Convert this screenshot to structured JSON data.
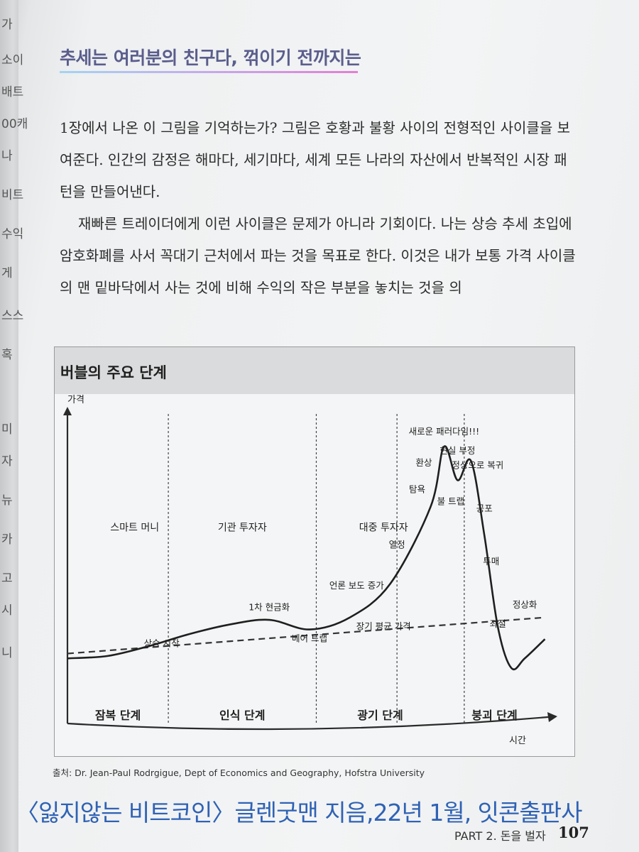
{
  "prev_page_fragments": [
    "가",
    "소이",
    "배트",
    "00캐",
    "나",
    "비트",
    "수익",
    "게",
    "스스",
    "혹",
    "미",
    "자",
    "뉴",
    "카",
    "고",
    "시",
    "니"
  ],
  "headline": "추세는 여러분의 친구다, 꺾이기 전까지는",
  "paragraphs": [
    "1장에서 나온 이 그림을 기억하는가? 그림은 호황과 불황 사이의 전형적인 사이클을 보여준다. 인간의 감정은 해마다, 세기마다, 세계 모든 나라의 자산에서 반복적인 시장 패턴을 만들어낸다.",
    "재빠른 트레이더에게 이런 사이클은 문제가 아니라 기회이다. 나는 상승 추세 초입에 암호화폐를 사서 꼭대기 근처에서 파는 것을 목표로 한다. 이것은 내가 보통 가격 사이클의 맨 밑바닥에서 사는 것에 비해 수익의 작은 부분을 놓치는 것을 의"
  ],
  "figure": {
    "title": "버블의 주요 단계"
  },
  "chart_data": {
    "type": "line",
    "title": "버블의 주요 단계",
    "xlabel": "시간",
    "ylabel": "가격",
    "colors": {
      "curve": "#1f1f1f",
      "trend": "#333333",
      "divider": "#444444"
    },
    "phases": [
      "잠복 단계",
      "인식 단계",
      "광기 단계",
      "붕괴 단계"
    ],
    "participants": [
      "스마트 머니",
      "기관 투자자",
      "대중 투자자"
    ],
    "series": [
      {
        "values": [
          {
            "x": 0,
            "y": 7
          },
          {
            "x": 6,
            "y": 8
          },
          {
            "x": 12,
            "y": 12
          },
          {
            "x": 18,
            "y": 17
          },
          {
            "x": 24,
            "y": 21
          },
          {
            "x": 30,
            "y": 23
          },
          {
            "x": 36,
            "y": 19
          },
          {
            "x": 42,
            "y": 24
          },
          {
            "x": 48,
            "y": 38
          },
          {
            "x": 54,
            "y": 70
          },
          {
            "x": 56,
            "y": 95
          },
          {
            "x": 58,
            "y": 81
          },
          {
            "x": 60,
            "y": 89
          },
          {
            "x": 62,
            "y": 58
          },
          {
            "x": 64,
            "y": 20
          },
          {
            "x": 66,
            "y": 3
          },
          {
            "x": 68,
            "y": 7
          },
          {
            "x": 71,
            "y": 15
          }
        ]
      },
      {
        "name": "장기 평균 가격",
        "values": [
          {
            "x": 0,
            "y": 9
          },
          {
            "x": 71,
            "y": 24
          }
        ]
      }
    ],
    "phase_boundaries_x": [
      15,
      37,
      49
    ],
    "annotations": [
      {
        "text": "상승 시작",
        "x": 14,
        "y": 12
      },
      {
        "text": "1차 현금화",
        "x": 30,
        "y": 27
      },
      {
        "text": "베어 트랩",
        "x": 36,
        "y": 14
      },
      {
        "text": "언론 보도 증가",
        "x": 43,
        "y": 36
      },
      {
        "text": "열정",
        "x": 49,
        "y": 53
      },
      {
        "text": "탐욕",
        "x": 52,
        "y": 76
      },
      {
        "text": "환상",
        "x": 53,
        "y": 87
      },
      {
        "text": "새로운 패러다임!!!",
        "x": 56,
        "y": 100
      },
      {
        "text": "현실 부정",
        "x": 58,
        "y": 92
      },
      {
        "text": "정상으로 복귀",
        "x": 61,
        "y": 86
      },
      {
        "text": "불 트랩",
        "x": 57,
        "y": 71
      },
      {
        "text": "공포",
        "x": 62,
        "y": 68
      },
      {
        "text": "투매",
        "x": 63,
        "y": 46
      },
      {
        "text": "좌절",
        "x": 64,
        "y": 20
      },
      {
        "text": "정상화",
        "x": 68,
        "y": 28
      },
      {
        "text": "장기 평균 가격",
        "x": 47,
        "y": 19
      }
    ],
    "xlim": [
      0,
      72
    ],
    "ylim": [
      0,
      105
    ],
    "grid": false
  },
  "source": "출처: Dr. Jean-Paul Rodrgigue, Dept of Economics and Geography, Hofstra University",
  "caption": "〈잃지않는 비트코인〉글렌굿맨 지음,22년 1월, 잇콘출판사",
  "footer": {
    "part": "PART 2. 돈을 벌자",
    "page": "107"
  }
}
